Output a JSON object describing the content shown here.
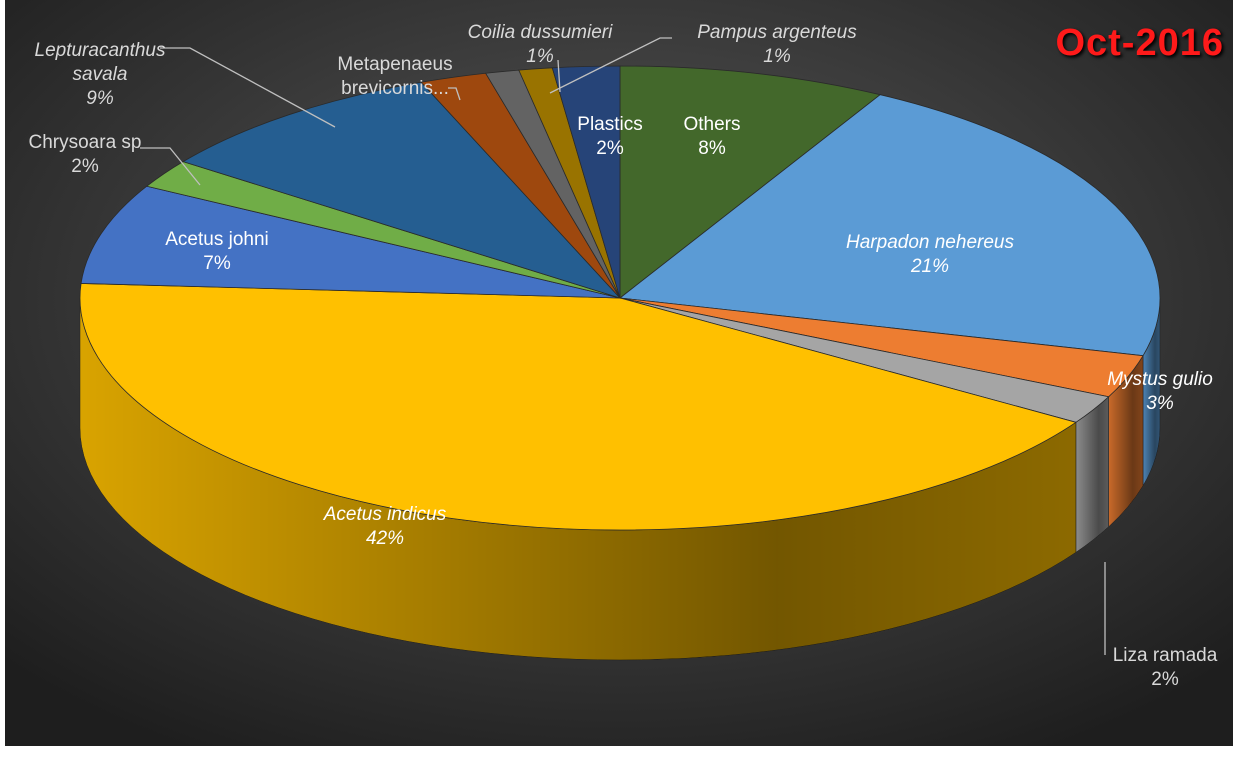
{
  "chart_data": {
    "type": "pie",
    "title": "Oct-2016",
    "categories": [
      "Others",
      "Harpadon nehereus",
      "Mystus gulio",
      "Liza ramada",
      "Acetus indicus",
      "Acetus johni",
      "Chrysoara sp",
      "Lepturacanthus savala",
      "Metapenaeus brevicornis...",
      "Coilia dussumieri",
      "Pampus argenteus",
      "Plastics"
    ],
    "values": [
      8,
      21,
      3,
      2,
      42,
      7,
      2,
      9,
      2,
      1,
      1,
      2
    ],
    "value_labels": [
      "8%",
      "21%",
      "3%",
      "2%",
      "42%",
      "7%",
      "2%",
      "9%",
      null,
      "1%",
      "1%",
      "2%"
    ],
    "colors": [
      "#43682b",
      "#5b9bd5",
      "#ed7d31",
      "#a5a5a5",
      "#ffc000",
      "#4472c4",
      "#70ad47",
      "#255e91",
      "#9e480e",
      "#636363",
      "#997300",
      "#264478"
    ],
    "start_angle": -90,
    "direction": "clockwise",
    "style": "3d"
  }
}
